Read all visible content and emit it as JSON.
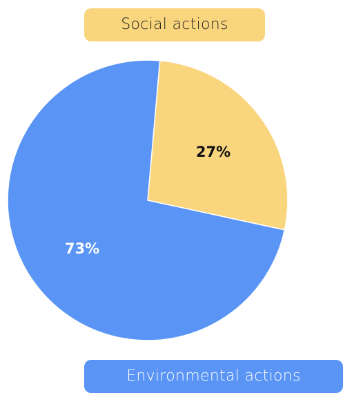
{
  "chart_data": {
    "type": "pie",
    "categories": [
      "Social actions",
      "Environmental actions"
    ],
    "values": [
      27,
      73
    ],
    "value_labels": [
      "27%",
      "73%"
    ],
    "colors": {
      "Social actions": "#f9d57e",
      "Environmental actions": "#5a95f5"
    },
    "label_colors": {
      "Social actions": "#111111",
      "Environmental actions": "#ffffff"
    },
    "start_angle_deg": 5,
    "direction": "clockwise",
    "legend": [
      {
        "label": "Social actions",
        "color": "#f9d57e",
        "placement": "top"
      },
      {
        "label": "Environmental actions",
        "color": "#5a95f5",
        "placement": "bottom-right"
      }
    ]
  }
}
